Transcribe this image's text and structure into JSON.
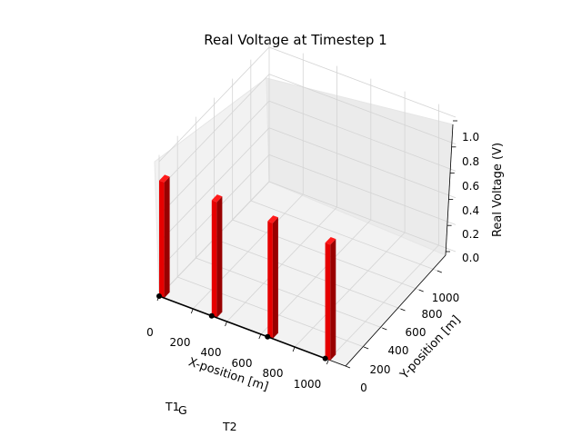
{
  "chart_data": {
    "type": "bar3d",
    "title": "Real Voltage at Timestep 1",
    "xlabel": "X-position [m]",
    "ylabel": "Y-position [m]",
    "zlabel": "Real Voltage (V)",
    "xlim": [
      0,
      1100
    ],
    "ylim": [
      0,
      1200
    ],
    "zlim": [
      0,
      1.0
    ],
    "x_ticks": [
      "0",
      "200",
      "400",
      "600",
      "800",
      "1000"
    ],
    "y_ticks": [
      "0",
      "200",
      "400",
      "600",
      "800",
      "1000"
    ],
    "z_ticks": [
      "0.0",
      "0.2",
      "0.4",
      "0.6",
      "0.8",
      "1.0"
    ],
    "bars": [
      {
        "x": 0,
        "y": 0,
        "value": 1.0
      },
      {
        "x": 310,
        "y": 0,
        "value": 1.0
      },
      {
        "x": 640,
        "y": 0,
        "value": 1.0
      },
      {
        "x": 980,
        "y": 0,
        "value": 1.0
      }
    ],
    "line_points": [
      {
        "x": 0,
        "y": 0
      },
      {
        "x": 310,
        "y": 0
      },
      {
        "x": 640,
        "y": 0
      },
      {
        "x": 980,
        "y": 0
      }
    ],
    "bar_color": "#e60000",
    "bar_side_color": "#990000",
    "bar_top_color": "#ff1a1a",
    "grid": true,
    "annotations": [
      "T1",
      "G",
      "T2"
    ]
  }
}
